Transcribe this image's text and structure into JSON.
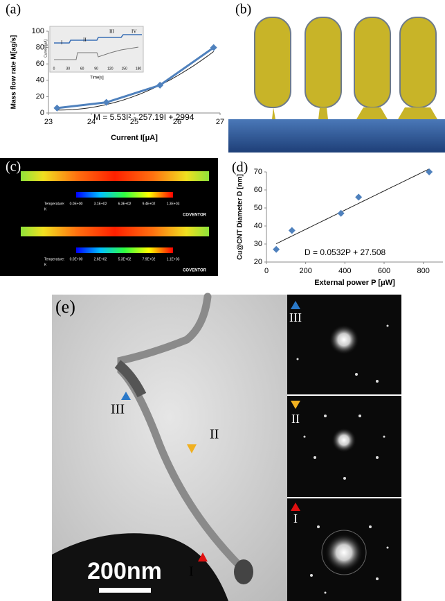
{
  "panels": {
    "a": "(a)",
    "b": "(b)",
    "c": "(c)",
    "d": "(d)",
    "e": "(e)"
  },
  "chart_data": [
    {
      "type": "line",
      "x": [
        23.2,
        24.35,
        25.6,
        26.85
      ],
      "values": [
        6,
        13,
        34,
        80
      ],
      "color": "#4f81bd",
      "xlim": [
        23,
        27
      ],
      "xticks": [
        23,
        24,
        25,
        26,
        27
      ],
      "ylim": [
        0,
        100
      ],
      "yticks": [
        0,
        20,
        40,
        60,
        80,
        100
      ],
      "x_label": "Current I[μA]",
      "y_label": "Mass flow rate M[ag/s]",
      "fit": {
        "label": "M = 5.53I² - 257.19I + 2994",
        "coefficients": [
          5.53,
          -257.19,
          2994
        ],
        "color": "#1f1f1f"
      },
      "inset": {
        "x_label": "Time[s]",
        "y_label": "Current[μA]",
        "xlim": [
          0,
          180
        ],
        "xticks": [
          0,
          30,
          60,
          90,
          120,
          150,
          180
        ],
        "stages": [
          "I",
          "II",
          "III",
          "IV"
        ]
      }
    },
    {
      "type": "scatter",
      "x": [
        50,
        130,
        380,
        470,
        830
      ],
      "values": [
        27,
        37.5,
        47,
        56,
        70
      ],
      "color": "#4f81bd",
      "xlim": [
        0,
        900
      ],
      "xticks": [
        0,
        200,
        400,
        600,
        800
      ],
      "ylim": [
        20,
        70
      ],
      "yticks": [
        20,
        30,
        40,
        50,
        60,
        70
      ],
      "x_label": "External power P [μW]",
      "y_label": "Cu@CNT Diameter D [nm]",
      "fit": {
        "label": "D = 0.0532P + 27.508",
        "coefficients": [
          0.0532,
          27.508
        ],
        "color": "#1f1f1f"
      }
    }
  ],
  "thermal": [
    {
      "label": "Temperature:",
      "unit": "K",
      "ticks": [
        "0.0E+00",
        "3.1E+02",
        "6.3E+02",
        "9.4E+02",
        "1.3E+03"
      ],
      "brand": "COVENTOR"
    },
    {
      "label": "Temperature:",
      "unit": "K",
      "ticks": [
        "0.0E+00",
        "2.6E+02",
        "5.3E+02",
        "7.9E+02",
        "1.1E+03"
      ],
      "brand": "COVENTOR"
    }
  ],
  "tem": {
    "scale_bar": "200nm",
    "sites": [
      "III",
      "II",
      "I"
    ]
  }
}
